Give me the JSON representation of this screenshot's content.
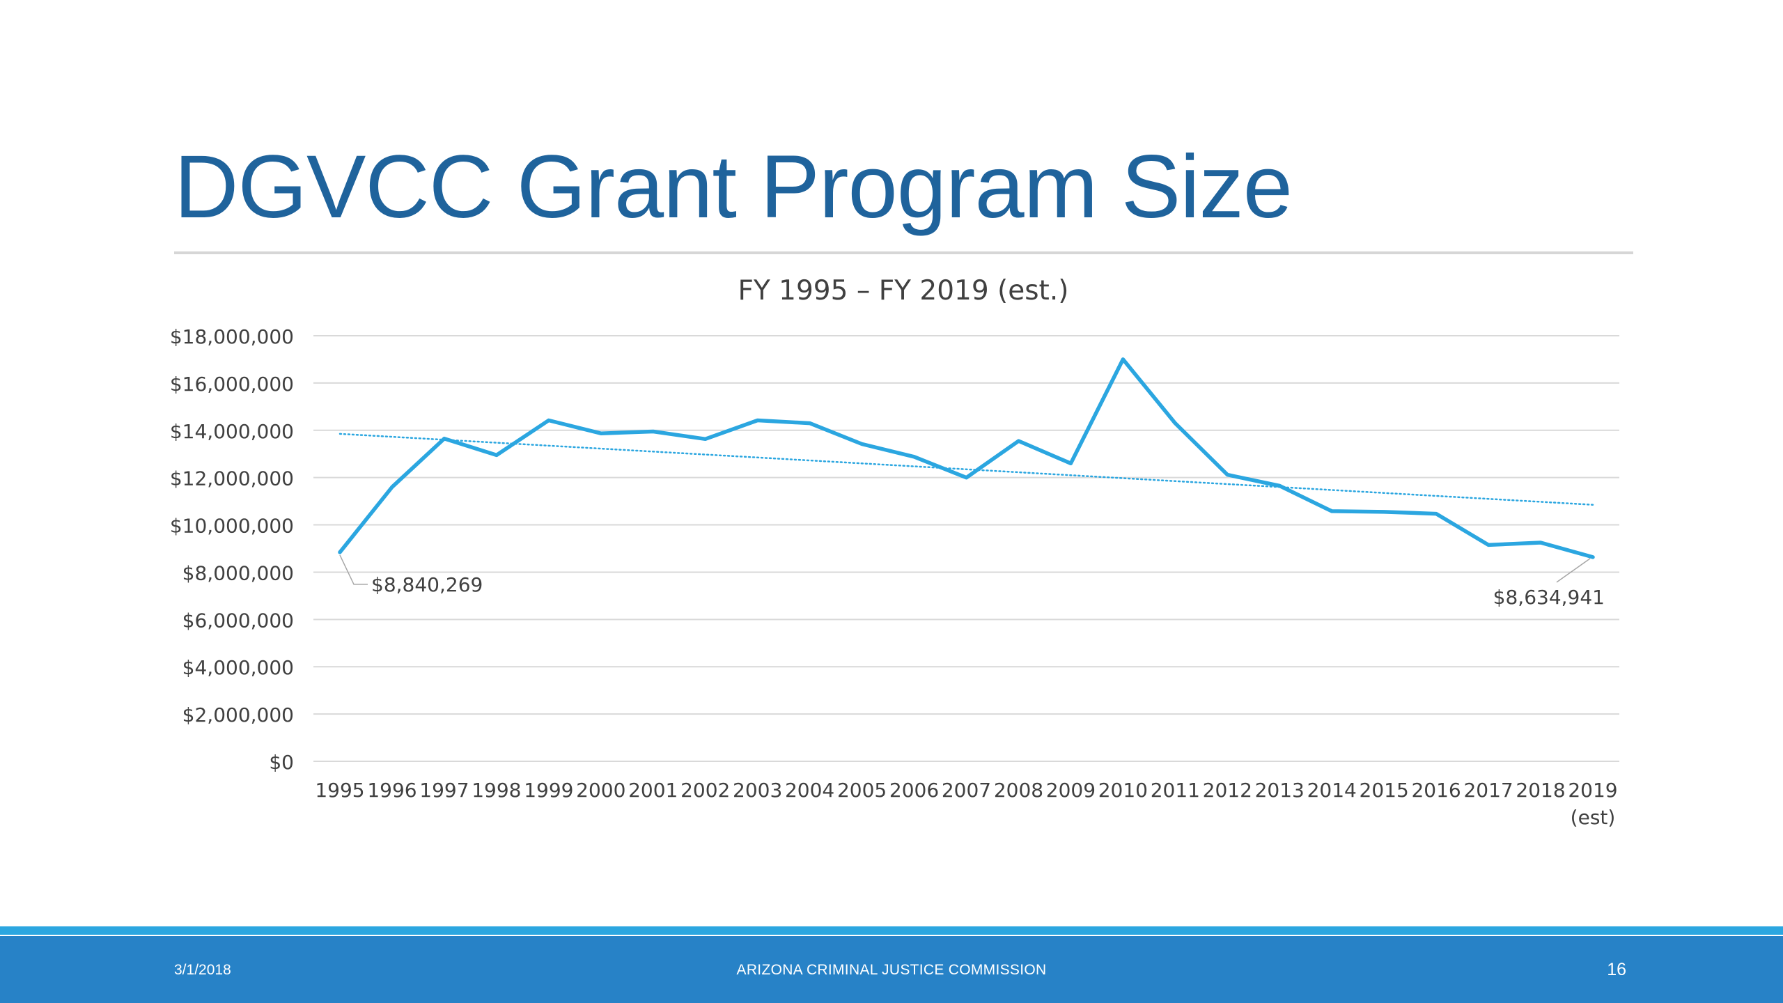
{
  "slide": {
    "title": "DGVCC Grant Program Size",
    "footer": {
      "date": "3/1/2018",
      "organization": "ARIZONA CRIMINAL JUSTICE COMMISSION",
      "page_number": "16"
    }
  },
  "chart_data": {
    "type": "line",
    "title": "FY 1995 – FY 2019 (est.)",
    "categories": [
      "1995",
      "1996",
      "1997",
      "1998",
      "1999",
      "2000",
      "2001",
      "2002",
      "2003",
      "2004",
      "2005",
      "2006",
      "2007",
      "2008",
      "2009",
      "2010",
      "2011",
      "2012",
      "2013",
      "2014",
      "2015",
      "2016",
      "2017",
      "2018",
      "2019"
    ],
    "category_sublabels": {
      "2019": "(est)"
    },
    "series": [
      {
        "values": [
          8840269,
          11600000,
          13650000,
          12950000,
          14420000,
          13870000,
          13950000,
          13630000,
          14420000,
          14300000,
          13420000,
          12880000,
          12000000,
          13550000,
          12600000,
          17000000,
          14300000,
          12120000,
          11650000,
          10580000,
          10550000,
          10470000,
          9150000,
          9250000,
          8634941
        ],
        "color": "#2ba6e0"
      }
    ],
    "trendline": {
      "type": "linear",
      "start": 13850000,
      "end": 10850000,
      "color": "#2ba6e0",
      "style": "dotted"
    },
    "data_labels": [
      {
        "category": "1995",
        "text": "$8,840,269"
      },
      {
        "category": "2019",
        "text": "$8,634,941"
      }
    ],
    "y_ticks": [
      "$0",
      "$2,000,000",
      "$4,000,000",
      "$6,000,000",
      "$8,000,000",
      "$10,000,000",
      "$12,000,000",
      "$14,000,000",
      "$16,000,000",
      "$18,000,000"
    ],
    "ylim": [
      0,
      18000000
    ],
    "grid": true,
    "gridline_color": "#d9d9d9",
    "legend": "none"
  }
}
